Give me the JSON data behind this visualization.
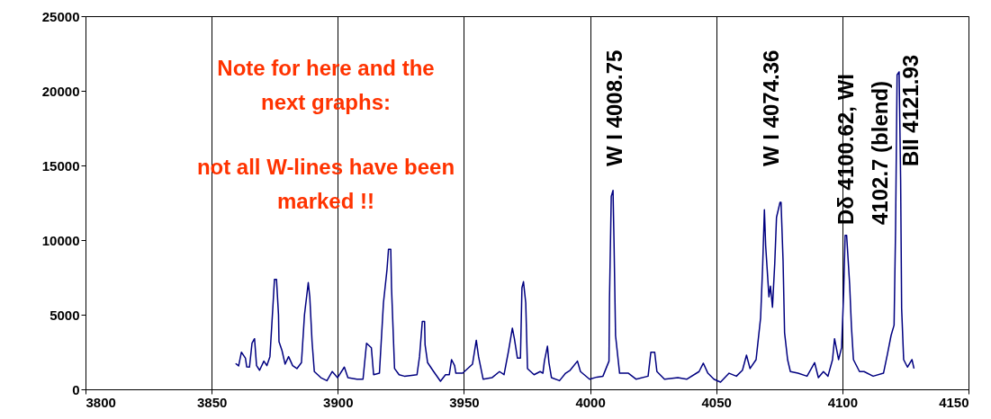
{
  "chart_data": {
    "type": "line",
    "x": [
      3859.5,
      3860.7,
      3861.8,
      3863.4,
      3863.9,
      3865,
      3866,
      3867,
      3867.8,
      3869,
      3870.7,
      3871.9,
      3873.1,
      3874.3,
      3874.9,
      3875.7,
      3876.5,
      3876.7,
      3877.9,
      3879.1,
      3880.5,
      3882.1,
      3883.8,
      3885.6,
      3886.8,
      3888.3,
      3888.9,
      3889.8,
      3890.7,
      3893.3,
      3895.7,
      3897.8,
      3899.9,
      3902.6,
      3904,
      3907.6,
      3910,
      3911.4,
      3913.3,
      3914.2,
      3916.5,
      3918.1,
      3919.5,
      3920.1,
      3921,
      3921.3,
      3922.5,
      3924.3,
      3926.4,
      3931.4,
      3932.4,
      3933.5,
      3934.4,
      3934.6,
      3935.6,
      3938,
      3940.7,
      3942.7,
      3944.2,
      3945.1,
      3946.3,
      3946.8,
      3949.5,
      3953.4,
      3954.9,
      3955.8,
      3957.6,
      3961.1,
      3964.1,
      3965.9,
      3967.7,
      3969.2,
      3970,
      3971.2,
      3972.4,
      3973,
      3973.6,
      3974.5,
      3975.2,
      3977.8,
      3980.2,
      3981.3,
      3981.9,
      3983.1,
      3983.7,
      3984.7,
      3987.9,
      3990.3,
      3992.1,
      3995,
      3996.2,
      3999.8,
      4002.7,
      4005.1,
      4007.5,
      4007.7,
      4008.4,
      4009.1,
      4009.5,
      4010.1,
      4011.7,
      4015.2,
      4018.2,
      4023,
      4024.1,
      4025.6,
      4026.5,
      4029.5,
      4034.8,
      4038.4,
      4043.2,
      4044.9,
      4046.7,
      4049.1,
      4051.7,
      4055.1,
      4058,
      4060.4,
      4062,
      4063.4,
      4065.8,
      4067.6,
      4068.4,
      4069.1,
      4069.6,
      4070.9,
      4071.5,
      4072.3,
      4073.2,
      4073.9,
      4075.3,
      4075.7,
      4076.5,
      4077.1,
      4078.3,
      4079.4,
      4082.4,
      4086,
      4089,
      4090.5,
      4092.5,
      4094.3,
      4096.1,
      4096.9,
      4098.5,
      4099.7,
      4100.5,
      4101.1,
      4101.7,
      4102.9,
      4103.6,
      4104.4,
      4106.8,
      4108.6,
      4112.2,
      4116.3,
      4117.9,
      4119.3,
      4120.5,
      4121.1,
      4121.7,
      4122.5,
      4123.1,
      4123.5,
      4124.3,
      4125.8,
      4127.6,
      4128.4
    ],
    "series": [
      {
        "color": "#000080",
        "values": [
          1730,
          1570,
          2490,
          2090,
          1500,
          1490,
          3090,
          3390,
          1590,
          1280,
          1890,
          1590,
          2190,
          5600,
          7370,
          7370,
          5000,
          3190,
          2590,
          1690,
          2190,
          1590,
          1390,
          1790,
          5000,
          7150,
          6200,
          3190,
          1190,
          780,
          580,
          1190,
          780,
          1490,
          780,
          680,
          680,
          3090,
          2790,
          980,
          1080,
          5800,
          8010,
          9380,
          9380,
          6810,
          1390,
          980,
          880,
          980,
          2190,
          4550,
          4550,
          2990,
          1790,
          1190,
          540,
          980,
          980,
          1990,
          1590,
          1080,
          1080,
          1690,
          3290,
          2190,
          680,
          780,
          1190,
          980,
          2590,
          4100,
          3390,
          2090,
          2090,
          6810,
          7210,
          5800,
          1390,
          980,
          1190,
          1080,
          1890,
          2890,
          1790,
          780,
          580,
          1080,
          1280,
          1890,
          1190,
          680,
          820,
          880,
          1890,
          6100,
          12930,
          13330,
          9820,
          3600,
          1080,
          1080,
          680,
          880,
          2490,
          2490,
          1190,
          680,
          780,
          680,
          1190,
          1750,
          1080,
          680,
          480,
          1080,
          880,
          1280,
          2290,
          1390,
          1990,
          4800,
          8210,
          12030,
          9620,
          6200,
          6910,
          5500,
          8420,
          11520,
          12530,
          12530,
          8610,
          3790,
          1990,
          1190,
          1080,
          880,
          1790,
          780,
          1190,
          880,
          1990,
          3390,
          1990,
          2790,
          6400,
          10320,
          10320,
          7000,
          4200,
          1990,
          1190,
          1190,
          880,
          1080,
          2390,
          3600,
          4300,
          10830,
          21070,
          21270,
          14040,
          5400,
          1990,
          1490,
          1990,
          1390
        ]
      }
    ],
    "xlim": [
      3800,
      4150
    ],
    "xticks": [
      3800,
      3850,
      3900,
      3950,
      4000,
      4050,
      4100,
      4150
    ],
    "ylim": [
      0,
      25000
    ],
    "yticks": [
      0,
      5000,
      10000,
      15000,
      20000,
      25000
    ],
    "grid": "x",
    "marker": "none",
    "line_style": "solid",
    "annotations": [
      "Note for here and the\nnext graphs:",
      "not all W-lines have been\nmarked !!",
      "W I 4008.75",
      "W I 4074.36",
      "Dδ 4100.62, WI\n4102.7 (blend)",
      "BII 4121.93"
    ]
  }
}
